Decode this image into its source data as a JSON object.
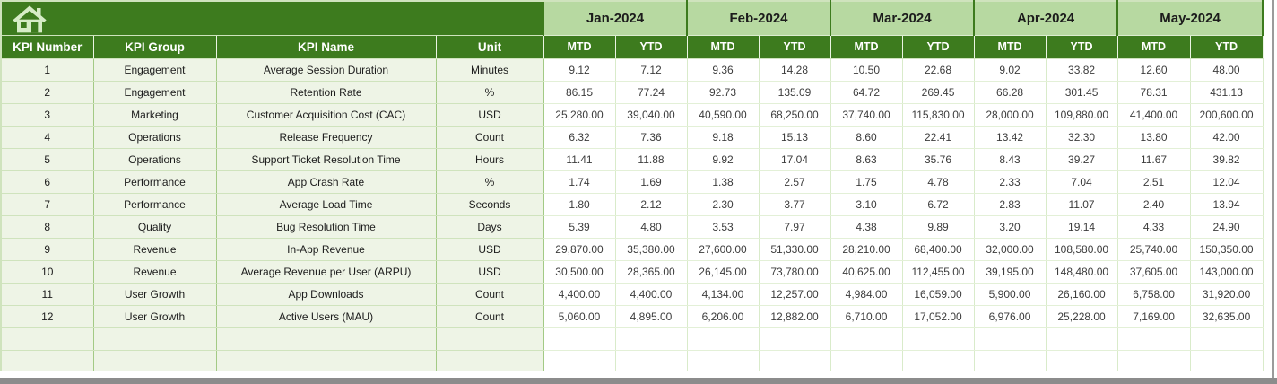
{
  "colors": {
    "header_dark_green": "#3d7b1e",
    "month_band_green": "#b7d9a1",
    "left_cell_green": "#eef4e6",
    "grid_light_green": "#d9ebca",
    "grid_mid_green": "#a3ca85",
    "scroll_edge_gray": "#8c8c8c"
  },
  "icons": {
    "home": "home-icon"
  },
  "table": {
    "left_headers": [
      "KPI Number",
      "KPI Group",
      "KPI Name",
      "Unit"
    ],
    "months": [
      "Jan-2024",
      "Feb-2024",
      "Mar-2024",
      "Apr-2024",
      "May-2024"
    ],
    "sub_headers": [
      "MTD",
      "YTD"
    ],
    "rows": [
      {
        "num": "1",
        "group": "Engagement",
        "name": "Average Session Duration",
        "unit": "Minutes",
        "values": [
          "9.12",
          "7.12",
          "9.36",
          "14.28",
          "10.50",
          "22.68",
          "9.02",
          "33.82",
          "12.60",
          "48.00"
        ]
      },
      {
        "num": "2",
        "group": "Engagement",
        "name": "Retention Rate",
        "unit": "%",
        "values": [
          "86.15",
          "77.24",
          "92.73",
          "135.09",
          "64.72",
          "269.45",
          "66.28",
          "301.45",
          "78.31",
          "431.13"
        ]
      },
      {
        "num": "3",
        "group": "Marketing",
        "name": "Customer Acquisition Cost (CAC)",
        "unit": "USD",
        "values": [
          "25,280.00",
          "39,040.00",
          "40,590.00",
          "68,250.00",
          "37,740.00",
          "115,830.00",
          "28,000.00",
          "109,880.00",
          "41,400.00",
          "200,600.00"
        ]
      },
      {
        "num": "4",
        "group": "Operations",
        "name": "Release Frequency",
        "unit": "Count",
        "values": [
          "6.32",
          "7.36",
          "9.18",
          "15.13",
          "8.60",
          "22.41",
          "13.42",
          "32.30",
          "13.80",
          "42.00"
        ]
      },
      {
        "num": "5",
        "group": "Operations",
        "name": "Support Ticket Resolution Time",
        "unit": "Hours",
        "values": [
          "11.41",
          "11.88",
          "9.92",
          "17.04",
          "8.63",
          "35.76",
          "8.43",
          "39.27",
          "11.67",
          "39.82"
        ]
      },
      {
        "num": "6",
        "group": "Performance",
        "name": "App Crash Rate",
        "unit": "%",
        "values": [
          "1.74",
          "1.69",
          "1.38",
          "2.57",
          "1.75",
          "4.78",
          "2.33",
          "7.04",
          "2.51",
          "12.04"
        ]
      },
      {
        "num": "7",
        "group": "Performance",
        "name": "Average Load Time",
        "unit": "Seconds",
        "values": [
          "1.80",
          "2.12",
          "2.30",
          "3.77",
          "3.10",
          "6.72",
          "2.83",
          "11.07",
          "2.40",
          "13.94"
        ]
      },
      {
        "num": "8",
        "group": "Quality",
        "name": "Bug Resolution Time",
        "unit": "Days",
        "values": [
          "5.39",
          "4.80",
          "3.53",
          "7.97",
          "4.38",
          "9.89",
          "3.20",
          "19.14",
          "4.33",
          "24.90"
        ]
      },
      {
        "num": "9",
        "group": "Revenue",
        "name": "In-App Revenue",
        "unit": "USD",
        "values": [
          "29,870.00",
          "35,380.00",
          "27,600.00",
          "51,330.00",
          "28,210.00",
          "68,400.00",
          "32,000.00",
          "108,580.00",
          "25,740.00",
          "150,350.00"
        ]
      },
      {
        "num": "10",
        "group": "Revenue",
        "name": "Average Revenue per User (ARPU)",
        "unit": "USD",
        "values": [
          "30,500.00",
          "28,365.00",
          "26,145.00",
          "73,780.00",
          "40,625.00",
          "112,455.00",
          "39,195.00",
          "148,480.00",
          "37,605.00",
          "143,000.00"
        ]
      },
      {
        "num": "11",
        "group": "User Growth",
        "name": "App Downloads",
        "unit": "Count",
        "values": [
          "4,400.00",
          "4,400.00",
          "4,134.00",
          "12,257.00",
          "4,984.00",
          "16,059.00",
          "5,900.00",
          "26,160.00",
          "6,758.00",
          "31,920.00"
        ]
      },
      {
        "num": "12",
        "group": "User Growth",
        "name": "Active Users (MAU)",
        "unit": "Count",
        "values": [
          "5,060.00",
          "4,895.00",
          "6,206.00",
          "12,882.00",
          "6,710.00",
          "17,052.00",
          "6,976.00",
          "25,228.00",
          "7,169.00",
          "32,635.00"
        ]
      }
    ],
    "empty_row_count": 2
  }
}
